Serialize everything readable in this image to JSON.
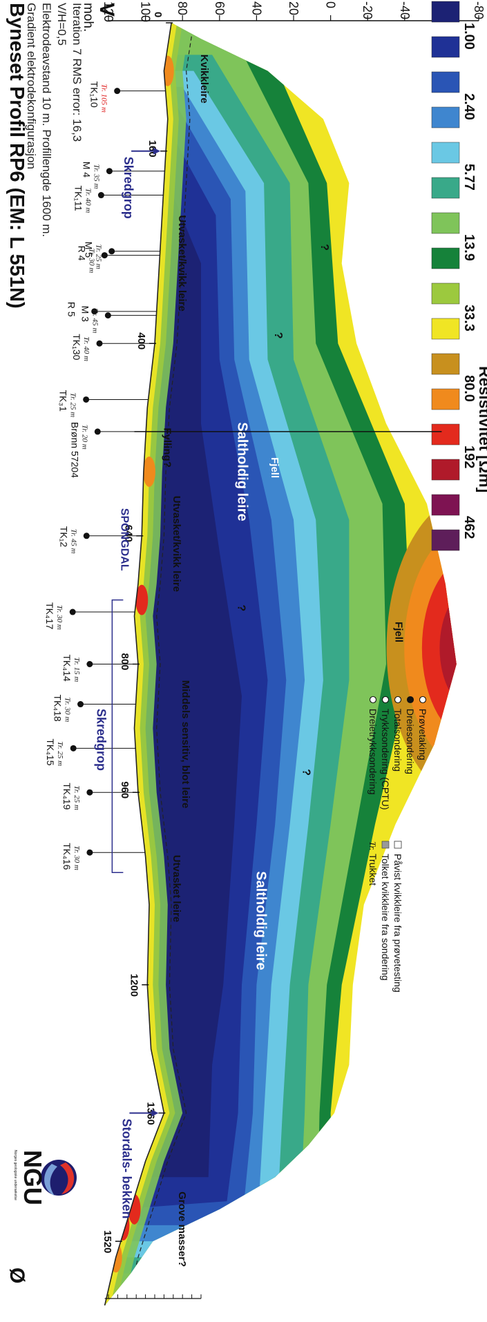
{
  "title": "Byneset Profil RP6 (EM: L 551N)",
  "subtitle_lines": [
    "Gradient elektrodekonfigurasjon",
    "Elektrodeavstand 10 m. Profillengde 1600 m.",
    "V/H=0,5",
    "Iteration 7 RMS error: 16,3"
  ],
  "logo": {
    "text": "NGU",
    "subtext": "Norges geologiske undersøkelse"
  },
  "colors": {
    "scale": [
      "#1c2274",
      "#1f3196",
      "#2a55b5",
      "#3f86cf",
      "#6ac8e4",
      "#39a989",
      "#7fc45a",
      "#16823a",
      "#9cc93e",
      "#f0e524",
      "#c8901e",
      "#f08a1d",
      "#e32a1d",
      "#b01a2a",
      "#7e1352",
      "#5e1e5a"
    ],
    "accent_blue": "#2b2e8c",
    "section_blue": "#1f1fb0"
  },
  "chart_data": {
    "type": "heatmap",
    "title": "Byneset Profil RP6 (EM: L 551N)",
    "x_axis": {
      "label": "",
      "ticks": [
        0,
        160,
        400,
        640,
        800,
        960,
        1200,
        1360,
        1520
      ],
      "range": [
        0,
        1600
      ],
      "unit": "m"
    },
    "y_axis": {
      "label": "moh.",
      "ticks": [
        120,
        100,
        80,
        60,
        40,
        20,
        0,
        -20,
        -40,
        -60,
        -80
      ],
      "range": [
        -80,
        120
      ]
    },
    "direction_labels": {
      "start": "V",
      "end": "Ø"
    },
    "colorbar": {
      "label": "Resistivitet [Ωm]",
      "tick_labels": [
        "1.00",
        "2.40",
        "5.77",
        "13.9",
        "33.3",
        "80.0",
        "192",
        "462"
      ]
    },
    "annotations": [
      {
        "text": "Kvikkleire",
        "x": 70,
        "y": 70
      },
      {
        "text": "Utvasket/kvikk leire",
        "x": 300,
        "y": 82
      },
      {
        "text": "Saltholdig leire",
        "x": 560,
        "y": 50
      },
      {
        "text": "Fjell",
        "x": 555,
        "y": 32
      },
      {
        "text": "Fylling?",
        "x": 530,
        "y": 90
      },
      {
        "text": "Utvasket/kvikk leire",
        "x": 650,
        "y": 85
      },
      {
        "text": "Fjell",
        "x": 760,
        "y": -35
      },
      {
        "text": "Middels sensitiv, blot leire",
        "x": 900,
        "y": 80
      },
      {
        "text": "Utvasket leire",
        "x": 1080,
        "y": 85
      },
      {
        "text": "Saltholdig leire",
        "x": 1120,
        "y": 40
      },
      {
        "text": "?",
        "x": 280,
        "y": 5
      },
      {
        "text": "?",
        "x": 390,
        "y": 30
      },
      {
        "text": "?",
        "x": 730,
        "y": 50
      },
      {
        "text": "?",
        "x": 935,
        "y": 15
      },
      {
        "text": "Grove masser?",
        "x": 1505,
        "y": 82
      }
    ],
    "sections": [
      {
        "name": "Skredgrop",
        "x": 160,
        "type": "arrow"
      },
      {
        "name": "SPONGDAL",
        "x": 640,
        "type": "label"
      },
      {
        "name": "Skredgrop",
        "x_start": 720,
        "x_end": 1060,
        "type": "bracket"
      },
      {
        "name": "Stordals- bekken",
        "x": 1360,
        "type": "arrow"
      }
    ],
    "boreholes": [
      {
        "label": "TK₁10",
        "depth": "Tr. 105 m",
        "x": 85,
        "symbols": [
          "dreietrykk",
          "prove"
        ],
        "red": true
      },
      {
        "label": "M 4",
        "depth": "Tr. 35 m",
        "x": 185,
        "symbols": [
          "totalsondering",
          "prove",
          "trykk"
        ]
      },
      {
        "label": "TK₁11",
        "depth": "Tr. 40 m",
        "x": 215,
        "symbols": [
          "dreietrykk",
          "prove"
        ]
      },
      {
        "label": "M 5",
        "depth": "Tr. 25 m",
        "x": 285,
        "symbols": [
          "dreietrykk"
        ]
      },
      {
        "label": "R 4",
        "depth": "Tr. 30 m",
        "x": 290,
        "symbols": [
          "totalsondering"
        ]
      },
      {
        "label": "R 5",
        "depth": "",
        "x": 360,
        "symbols": [
          "totalsondering"
        ]
      },
      {
        "label": "M 3",
        "depth": "Tr. 45 m",
        "x": 365,
        "symbols": [
          "dreietrykk"
        ]
      },
      {
        "label": "TK₁30",
        "depth": "Tr. 40 m",
        "x": 400,
        "symbols": [
          "prove"
        ]
      },
      {
        "label": "TK₃1",
        "depth": "Tr. 25 m",
        "x": 470,
        "symbols": [
          "dreie"
        ]
      },
      {
        "label": "Brønn 57204",
        "depth": "Tr. 20 m",
        "x": 510,
        "symbols": []
      },
      {
        "label": "TK₁2",
        "depth": "Tr. 45 m",
        "x": 640,
        "symbols": [
          "dreie"
        ]
      },
      {
        "label": "TK₄17",
        "depth": "Tr. 30 m",
        "x": 735,
        "symbols": [
          "dreie"
        ]
      },
      {
        "label": "TK₄14",
        "depth": "Tr. 15 m",
        "x": 800,
        "symbols": [
          "prove"
        ]
      },
      {
        "label": "TK₄18",
        "depth": "Tr. 30 m",
        "x": 850,
        "symbols": [
          "dreie"
        ]
      },
      {
        "label": "TK₄15",
        "depth": "Tr. 25 m",
        "x": 905,
        "symbols": [
          "dreie"
        ]
      },
      {
        "label": "TK₄19",
        "depth": "Tr. 25 m",
        "x": 960,
        "symbols": [
          "dreie"
        ]
      },
      {
        "label": "TK₄16",
        "depth": "Tr. 30 m",
        "x": 1035,
        "symbols": [
          "dreie"
        ]
      }
    ]
  },
  "legend": {
    "items": [
      {
        "symbol": "dreietrykk",
        "text": "Dreietrykksondering"
      },
      {
        "symbol": "trykk",
        "text": "Trykksondering (CPTU)"
      },
      {
        "symbol": "totalsondering",
        "text": "Totalsondering"
      },
      {
        "symbol": "dreie",
        "text": "Dreiesondering"
      },
      {
        "symbol": "prove",
        "text": "Prøvetaking"
      },
      {
        "symbol": "Tr.",
        "text": "Trukket"
      },
      {
        "symbol": "grey-box",
        "text": "Tolket kvikkleire fra sondering"
      },
      {
        "symbol": "white-box",
        "text": "Påvist kvikkleire fra prøvetesting"
      }
    ]
  }
}
